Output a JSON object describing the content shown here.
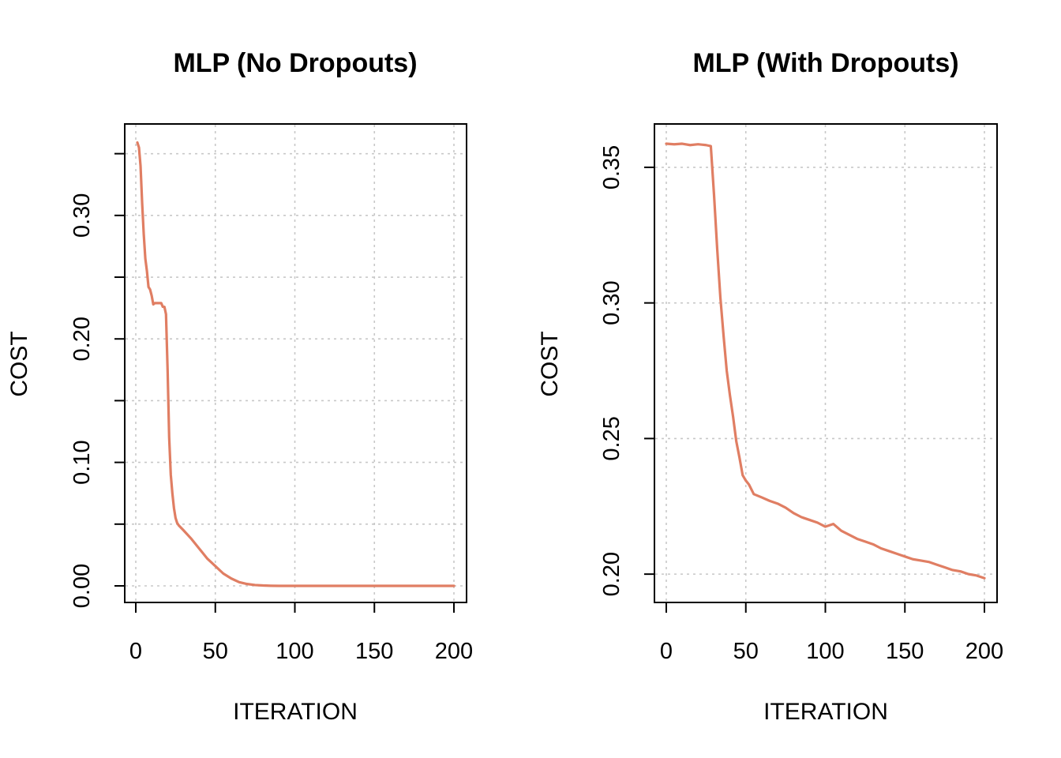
{
  "colors": {
    "series": "#E07E63",
    "grid": "#C8C8C8",
    "axis": "#000000"
  },
  "chart_data": [
    {
      "type": "line",
      "title": "MLP (No Dropouts)",
      "xlabel": "ITERATION",
      "ylabel": "COST",
      "xlim": [
        0,
        200
      ],
      "ylim": [
        0,
        0.36
      ],
      "xticks": [
        0,
        50,
        100,
        150,
        200
      ],
      "xtick_labels": [
        "0",
        "50",
        "100",
        "150",
        "200"
      ],
      "yticks": [
        0,
        0.05,
        0.1,
        0.15,
        0.2,
        0.25,
        0.3,
        0.35
      ],
      "yticks_labeled": [
        0,
        0.1,
        0.2,
        0.3
      ],
      "ytick_labels": [
        "0.00",
        "0.10",
        "0.20",
        "0.30"
      ],
      "grid": true,
      "series": [
        {
          "x": [
            1,
            2,
            3,
            4,
            5,
            6,
            7,
            8,
            9,
            10,
            11,
            12,
            13,
            14,
            15,
            16,
            17,
            18,
            19,
            20,
            21,
            22,
            23,
            24,
            25,
            26,
            27,
            30,
            35,
            40,
            45,
            50,
            55,
            60,
            65,
            70,
            75,
            80,
            85,
            90,
            100,
            120,
            150,
            180,
            200
          ],
          "y": [
            0.359,
            0.355,
            0.34,
            0.31,
            0.285,
            0.265,
            0.255,
            0.242,
            0.24,
            0.235,
            0.228,
            0.229,
            0.229,
            0.229,
            0.229,
            0.229,
            0.226,
            0.226,
            0.22,
            0.175,
            0.12,
            0.09,
            0.075,
            0.063,
            0.055,
            0.051,
            0.049,
            0.045,
            0.038,
            0.03,
            0.022,
            0.016,
            0.01,
            0.006,
            0.003,
            0.0015,
            0.0007,
            0.0003,
            0.0001,
            0.0,
            0.0,
            0.0,
            0.0,
            0.0,
            0.0
          ]
        }
      ]
    },
    {
      "type": "line",
      "title": "MLP (With Dropouts)",
      "xlabel": "ITERATION",
      "ylabel": "COST",
      "xlim": [
        0,
        200
      ],
      "ylim": [
        0.198,
        0.359
      ],
      "xticks": [
        0,
        50,
        100,
        150,
        200
      ],
      "xtick_labels": [
        "0",
        "50",
        "100",
        "150",
        "200"
      ],
      "yticks": [
        0.2,
        0.25,
        0.3,
        0.35
      ],
      "yticks_labeled": [
        0.2,
        0.25,
        0.3,
        0.35
      ],
      "ytick_labels": [
        "0.20",
        "0.25",
        "0.30",
        "0.35"
      ],
      "grid": true,
      "series": [
        {
          "x": [
            0,
            5,
            10,
            15,
            20,
            25,
            28,
            30,
            32,
            34,
            36,
            38,
            40,
            42,
            44,
            46,
            48,
            50,
            52,
            55,
            60,
            65,
            70,
            75,
            80,
            85,
            90,
            95,
            100,
            105,
            110,
            115,
            120,
            125,
            130,
            135,
            140,
            145,
            150,
            155,
            160,
            165,
            170,
            175,
            180,
            185,
            190,
            195,
            200
          ],
          "y": [
            0.3587,
            0.3585,
            0.3587,
            0.3582,
            0.3585,
            0.3582,
            0.3578,
            0.34,
            0.32,
            0.302,
            0.288,
            0.275,
            0.266,
            0.258,
            0.249,
            0.243,
            0.2365,
            0.2345,
            0.233,
            0.2295,
            0.2283,
            0.227,
            0.226,
            0.2245,
            0.2225,
            0.221,
            0.22,
            0.219,
            0.2175,
            0.2185,
            0.216,
            0.2145,
            0.213,
            0.212,
            0.211,
            0.2095,
            0.2085,
            0.2075,
            0.2065,
            0.2055,
            0.205,
            0.2045,
            0.2035,
            0.2025,
            0.2015,
            0.201,
            0.2,
            0.1995,
            0.1985
          ]
        }
      ]
    }
  ]
}
